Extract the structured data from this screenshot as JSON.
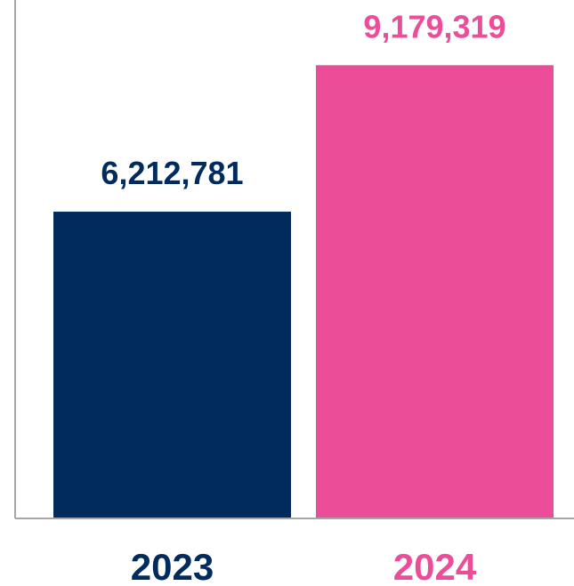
{
  "chart_data": {
    "type": "bar",
    "title": "",
    "xlabel": "",
    "ylabel": "",
    "categories": [
      "2023",
      "2024"
    ],
    "values": [
      6212781,
      9179319
    ],
    "value_labels": [
      "6,212,781",
      "9,179,319"
    ],
    "colors": [
      "#012b5c",
      "#ec4d98"
    ],
    "ylim": [
      0,
      10500000
    ],
    "grid": false,
    "legend": "none"
  }
}
